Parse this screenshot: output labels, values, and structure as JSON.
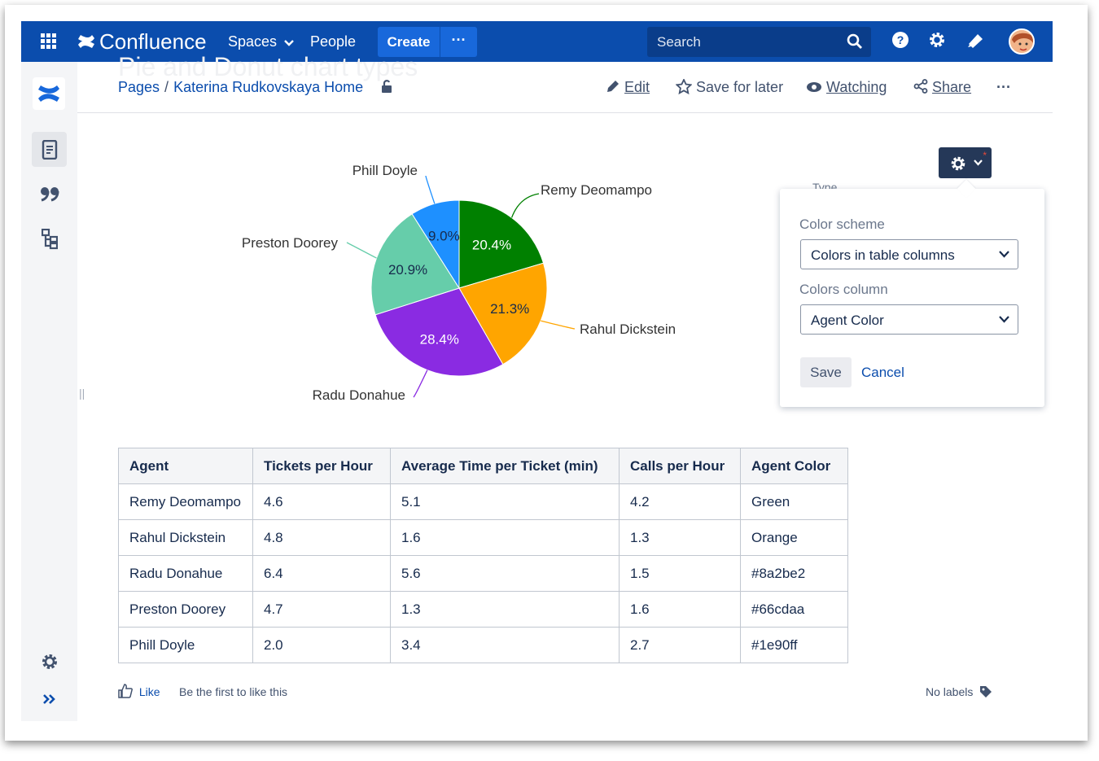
{
  "topbar": {
    "app_name": "Confluence",
    "spaces_label": "Spaces",
    "people_label": "People",
    "create_label": "Create",
    "more_label": "···",
    "search_placeholder": "Search"
  },
  "page": {
    "ghost_title": "Pie and Donut chart types",
    "breadcrumb": [
      "Pages",
      "Katerina Rudkovskaya Home"
    ],
    "actions": {
      "edit": "Edit",
      "save_for_later": "Save for later",
      "watching": "Watching",
      "share": "Share",
      "more": "···"
    }
  },
  "chart_data": {
    "type": "pie",
    "slices": [
      {
        "name": "Remy Deomampo",
        "value": 20.4,
        "label": "20.4%",
        "color": "#008000"
      },
      {
        "name": "Rahul Dickstein",
        "value": 21.3,
        "label": "21.3%",
        "color": "#ffa500"
      },
      {
        "name": "Radu Donahue",
        "value": 28.4,
        "label": "28.4%",
        "color": "#8a2be2"
      },
      {
        "name": "Preston Doorey",
        "value": 20.9,
        "label": "20.9%",
        "color": "#66cdaa"
      },
      {
        "name": "Phill Doyle",
        "value": 9.0,
        "label": "9.0%",
        "color": "#1e90ff"
      }
    ]
  },
  "settings_panel": {
    "type_label": "Type",
    "color_scheme_label": "Color scheme",
    "color_scheme_value": "Colors in table columns",
    "colors_column_label": "Colors column",
    "colors_column_value": "Agent Color",
    "save_label": "Save",
    "cancel_label": "Cancel"
  },
  "table": {
    "headers": [
      "Agent",
      "Tickets per Hour",
      "Average Time per Ticket (min)",
      "Calls per Hour",
      "Agent Color"
    ],
    "rows": [
      [
        "Remy Deomampo",
        "4.6",
        "5.1",
        "4.2",
        "Green"
      ],
      [
        "Rahul Dickstein",
        "4.8",
        "1.6",
        "1.3",
        "Orange"
      ],
      [
        "Radu Donahue",
        "6.4",
        "5.6",
        "1.5",
        "#8a2be2"
      ],
      [
        "Preston Doorey",
        "4.7",
        "1.3",
        "1.6",
        "#66cdaa"
      ],
      [
        "Phill Doyle",
        "2.0",
        "3.4",
        "2.7",
        "#1e90ff"
      ]
    ]
  },
  "footer": {
    "like_label": "Like",
    "first_like": "Be the first to like this",
    "no_labels": "No labels"
  }
}
